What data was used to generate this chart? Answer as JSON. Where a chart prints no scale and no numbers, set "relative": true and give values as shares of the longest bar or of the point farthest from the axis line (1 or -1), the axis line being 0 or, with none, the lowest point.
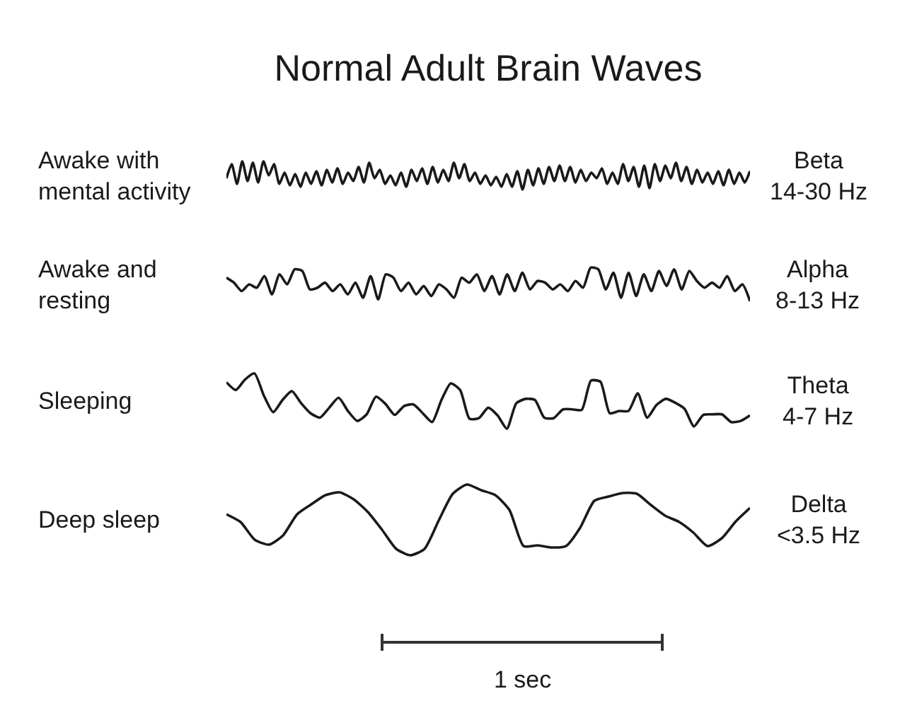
{
  "chart_data": [
    {
      "type": "line",
      "relative": true,
      "title": "Normal Adult Brain Waves",
      "color": "#1a1a1a",
      "annotations": [
        "Awake with\nmental activity",
        "Beta\n14-30 Hz"
      ],
      "categories": [
        null,
        null,
        null,
        null,
        null,
        null,
        null,
        null,
        null,
        null,
        null,
        null,
        null,
        null,
        null,
        null,
        null,
        null,
        null,
        null,
        null,
        null,
        null,
        null,
        null,
        null,
        null,
        null,
        null,
        null,
        null,
        null,
        null,
        null,
        null,
        null,
        null,
        null,
        null,
        null,
        null,
        null,
        null,
        null,
        null,
        null,
        null,
        null,
        null,
        null,
        null,
        null,
        null,
        null,
        null,
        null,
        null,
        null,
        null,
        null,
        null,
        null,
        null,
        null,
        null,
        null,
        null,
        null,
        null,
        null,
        null,
        null,
        null,
        null,
        null,
        null,
        null,
        null,
        null,
        null,
        null,
        null,
        null,
        null,
        null,
        null,
        null,
        null,
        null,
        null,
        null,
        null,
        null,
        null,
        null,
        null,
        null,
        null,
        null,
        null
      ],
      "values": [
        0.4,
        0.9,
        0.2,
        1,
        0.3,
        0.95,
        0.25,
        1,
        0.5,
        0.9,
        0.2,
        0.6,
        0.15,
        0.55,
        0.1,
        0.6,
        0.2,
        0.65,
        0.15,
        0.7,
        0.25,
        0.75,
        0.2,
        0.6,
        0.3,
        0.8,
        0.25,
        0.95,
        0.4,
        0.7,
        0.2,
        0.5,
        0.15,
        0.6,
        0.1,
        0.7,
        0.3,
        0.75,
        0.2,
        0.8,
        0.25,
        0.7,
        0.3,
        0.95,
        0.4,
        0.9,
        0.3,
        0.6,
        0.2,
        0.5,
        0.15,
        0.45,
        0.1,
        0.55,
        0.1,
        0.65,
        0,
        0.7,
        0.15,
        0.75,
        0.2,
        0.8,
        0.3,
        0.85,
        0.3,
        0.8,
        0.25,
        0.7,
        0.3,
        0.6,
        0.4,
        0.75,
        0.2,
        0.6,
        0.2,
        0.9,
        0.3,
        0.8,
        0.1,
        0.85,
        0.05,
        0.9,
        0.3,
        0.85,
        0.4,
        0.95,
        0.3,
        0.8,
        0.2,
        0.7,
        0.25,
        0.6,
        0.2,
        0.65,
        0.15,
        0.7,
        0.2,
        0.6,
        0.25,
        0.65
      ]
    },
    {
      "type": "line",
      "relative": true,
      "color": "#1a1a1a",
      "annotations": [
        "Awake and\nresting",
        "Alpha\n8-13 Hz"
      ],
      "categories": [
        null,
        null,
        null,
        null,
        null,
        null,
        null,
        null,
        null,
        null,
        null,
        null,
        null,
        null,
        null,
        null,
        null,
        null,
        null,
        null,
        null,
        null,
        null,
        null,
        null,
        null,
        null,
        null,
        null,
        null,
        null,
        null,
        null,
        null,
        null,
        null,
        null,
        null,
        null,
        null,
        null,
        null,
        null,
        null,
        null,
        null,
        null,
        null,
        null,
        null,
        null,
        null,
        null,
        null,
        null,
        null,
        null,
        null,
        null,
        null,
        null,
        null,
        null,
        null,
        null,
        null,
        null,
        null,
        null,
        null
      ],
      "values": [
        0.7,
        0.55,
        0.3,
        0.5,
        0.4,
        0.75,
        0.2,
        0.8,
        0.5,
        0.95,
        0.9,
        0.35,
        0.4,
        0.55,
        0.3,
        0.5,
        0.2,
        0.55,
        0.1,
        0.75,
        0.05,
        0.8,
        0.7,
        0.3,
        0.55,
        0.2,
        0.45,
        0.15,
        0.5,
        0.35,
        0.1,
        0.7,
        0.55,
        0.8,
        0.3,
        0.75,
        0.2,
        0.8,
        0.3,
        0.85,
        0.35,
        0.6,
        0.55,
        0.35,
        0.5,
        0.3,
        0.6,
        0.4,
        1,
        0.95,
        0.35,
        0.85,
        0.1,
        0.85,
        0.15,
        0.8,
        0.3,
        0.9,
        0.45,
        0.95,
        0.35,
        0.9,
        0.6,
        0.4,
        0.55,
        0.4,
        0.75,
        0.3,
        0.5,
        0
      ]
    },
    {
      "type": "line",
      "relative": true,
      "color": "#1a1a1a",
      "annotations": [
        "Sleeping",
        "Theta\n4-7 Hz"
      ],
      "categories": [
        null,
        null,
        null,
        null,
        null,
        null,
        null,
        null,
        null,
        null,
        null,
        null,
        null,
        null,
        null,
        null,
        null,
        null,
        null,
        null,
        null,
        null,
        null,
        null,
        null,
        null,
        null,
        null,
        null,
        null,
        null,
        null,
        null,
        null,
        null,
        null,
        null,
        null,
        null,
        null,
        null,
        null,
        null,
        null,
        null,
        null,
        null,
        null,
        null,
        null,
        null,
        null,
        null,
        null,
        null,
        null,
        null
      ],
      "values": [
        0.84,
        0.7,
        0.89,
        1,
        0.6,
        0.3,
        0.52,
        0.68,
        0.46,
        0.28,
        0.2,
        0.38,
        0.56,
        0.32,
        0.14,
        0.26,
        0.58,
        0.45,
        0.25,
        0.41,
        0.44,
        0.28,
        0.12,
        0.52,
        0.82,
        0.7,
        0.18,
        0.19,
        0.38,
        0.24,
        0,
        0.46,
        0.54,
        0.52,
        0.2,
        0.19,
        0.35,
        0.35,
        0.34,
        0.87,
        0.85,
        0.28,
        0.32,
        0.32,
        0.64,
        0.2,
        0.43,
        0.54,
        0.47,
        0.36,
        0.04,
        0.25,
        0.26,
        0.26,
        0.12,
        0.14,
        0.24
      ]
    },
    {
      "type": "line",
      "relative": true,
      "color": "#1a1a1a",
      "annotations": [
        "Deep sleep",
        "Delta\n<3.5 Hz",
        "1 sec"
      ],
      "categories": [
        null,
        null,
        null,
        null,
        null,
        null,
        null,
        null,
        null,
        null,
        null,
        null,
        null,
        null,
        null,
        null,
        null,
        null,
        null,
        null,
        null,
        null,
        null,
        null,
        null,
        null,
        null,
        null,
        null,
        null,
        null,
        null,
        null,
        null,
        null,
        null,
        null,
        null
      ],
      "values": [
        0.58,
        0.47,
        0.22,
        0.15,
        0.28,
        0.58,
        0.72,
        0.85,
        0.89,
        0.79,
        0.61,
        0.36,
        0.09,
        0,
        0.09,
        0.49,
        0.87,
        1,
        0.92,
        0.85,
        0.64,
        0.13,
        0.14,
        0.11,
        0.13,
        0.39,
        0.77,
        0.83,
        0.88,
        0.87,
        0.71,
        0.56,
        0.47,
        0.32,
        0.13,
        0.24,
        0.48,
        0.67
      ]
    }
  ]
}
